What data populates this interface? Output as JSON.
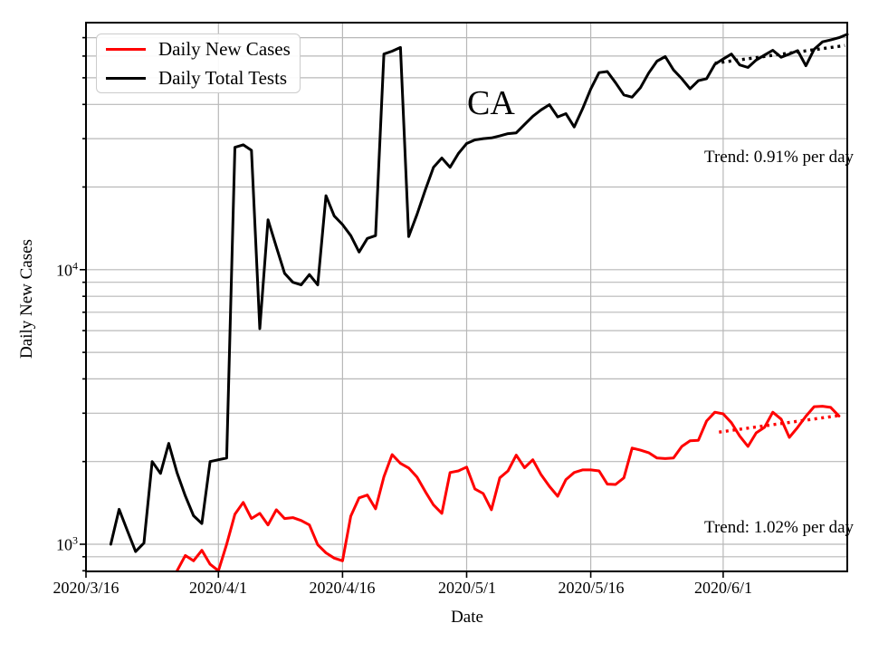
{
  "chart_data": {
    "type": "line",
    "title": "",
    "xlabel": "Date",
    "ylabel": "Daily New Cases",
    "yscale": "log",
    "grid": true,
    "legend_position": "upper-left",
    "ylim": [
      796,
      79400
    ],
    "x_days_total": 92,
    "x_start_date": "2020/3/16",
    "x_ticks": [
      {
        "day": 0,
        "label": "2020/3/16"
      },
      {
        "day": 16,
        "label": "2020/4/1"
      },
      {
        "day": 31,
        "label": "2020/4/16"
      },
      {
        "day": 46,
        "label": "2020/5/1"
      },
      {
        "day": 61,
        "label": "2020/5/16"
      },
      {
        "day": 77,
        "label": "2020/6/1"
      }
    ],
    "y_ticks": [
      {
        "base": "10",
        "exp": "3",
        "value": 1000
      },
      {
        "base": "10",
        "exp": "4",
        "value": 10000
      }
    ],
    "series": [
      {
        "name": "Daily New Cases",
        "color": "#ff0000",
        "start_day": 11,
        "values": [
          800,
          910,
          870,
          950,
          845,
          800,
          1000,
          1285,
          1420,
          1240,
          1295,
          1175,
          1335,
          1240,
          1250,
          1220,
          1175,
          995,
          930,
          890,
          870,
          1265,
          1475,
          1510,
          1345,
          1760,
          2120,
          1970,
          1895,
          1755,
          1555,
          1390,
          1295,
          1825,
          1850,
          1910,
          1590,
          1530,
          1335,
          1745,
          1850,
          2110,
          1900,
          2030,
          1790,
          1625,
          1495,
          1720,
          1825,
          1865,
          1865,
          1850,
          1655,
          1650,
          1745,
          2240,
          2200,
          2155,
          2060,
          2050,
          2060,
          2270,
          2380,
          2390,
          2810,
          3025,
          2985,
          2770,
          2475,
          2270,
          2545,
          2665,
          3025,
          2855,
          2450,
          2665,
          2925,
          3170,
          3180,
          3150,
          2930
        ]
      },
      {
        "name": "Daily Total Tests",
        "color": "#000000",
        "start_day": 3,
        "values": [
          1000,
          1340,
          1120,
          940,
          1010,
          2000,
          1810,
          2330,
          1820,
          1500,
          1270,
          1190,
          2000,
          2030,
          2060,
          27900,
          28500,
          27200,
          6100,
          15200,
          12100,
          9700,
          9000,
          8800,
          9600,
          8800,
          18600,
          15700,
          14600,
          13300,
          11600,
          13000,
          13300,
          61000,
          62500,
          64500,
          13200,
          15900,
          19500,
          23600,
          25500,
          23600,
          26500,
          28800,
          29700,
          30000,
          30200,
          30700,
          31300,
          31500,
          33800,
          36200,
          38200,
          39900,
          36000,
          37000,
          33100,
          38500,
          45500,
          52200,
          52700,
          48000,
          43300,
          42500,
          46000,
          52000,
          57500,
          59700,
          53400,
          49600,
          45600,
          48800,
          49600,
          56000,
          58500,
          61000,
          55700,
          54500,
          58000,
          60500,
          63000,
          59400,
          61000,
          62800,
          55300,
          63500,
          67600,
          68700,
          70000,
          72000
        ]
      }
    ],
    "trend_lines": [
      {
        "series": "Daily Total Tests",
        "color": "#000000",
        "start_day": 76,
        "start_value": 56500,
        "end_day": 91.7,
        "end_value": 65500,
        "label": "Trend: 0.91% per day"
      },
      {
        "series": "Daily New Cases",
        "color": "#ff0000",
        "start_day": 76.5,
        "start_value": 2560,
        "end_day": 91.3,
        "end_value": 2950,
        "label": "Trend: 1.02% per day"
      }
    ],
    "annotations": [
      {
        "text": "CA"
      }
    ],
    "colors": {
      "cases": "#ff0000",
      "tests": "#000000",
      "grid": "#b8b8b8",
      "axes": "#000000"
    }
  }
}
